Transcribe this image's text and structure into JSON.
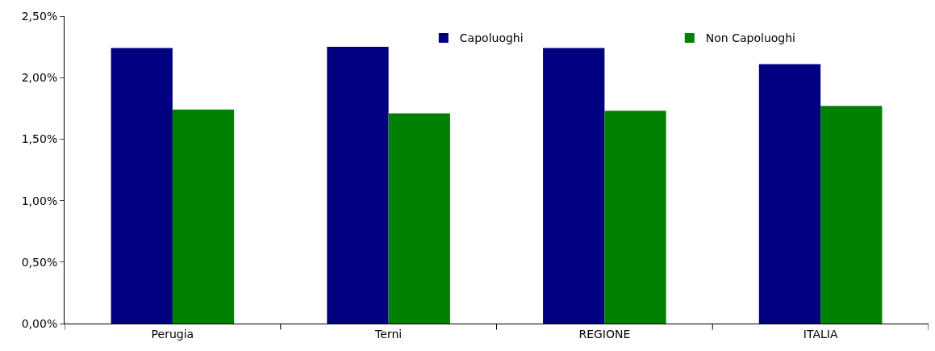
{
  "chart_data": {
    "type": "bar",
    "categories": [
      "Perugia",
      "Terni",
      "REGIONE",
      "ITALIA"
    ],
    "series": [
      {
        "name": "Capoluoghi",
        "color": "#000080",
        "values": [
          2.24,
          2.25,
          2.24,
          2.11
        ]
      },
      {
        "name": "Non Capoluoghi",
        "color": "#008000",
        "values": [
          1.74,
          1.71,
          1.73,
          1.77
        ]
      }
    ],
    "ylim": [
      0,
      2.5
    ],
    "yticks": [
      {
        "value": 0,
        "label": "0,00%"
      },
      {
        "value": 0.5,
        "label": "0,50%"
      },
      {
        "value": 1,
        "label": "1,00%"
      },
      {
        "value": 1.5,
        "label": "1,50%"
      },
      {
        "value": 2,
        "label": "2,00%"
      },
      {
        "value": 2.5,
        "label": "2,50%"
      }
    ],
    "grid": false,
    "legend": "top"
  }
}
